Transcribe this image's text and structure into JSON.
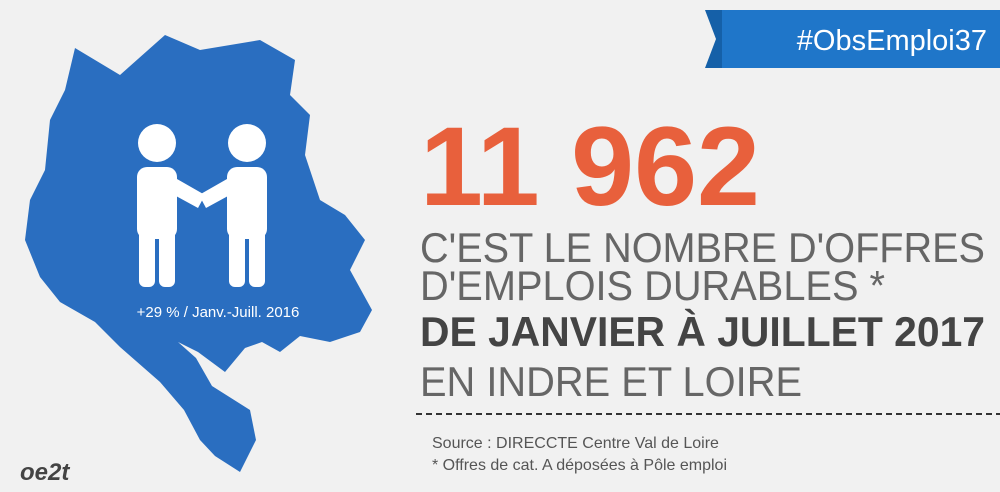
{
  "header": {
    "hashtag": "#ObsEmploi37"
  },
  "map": {
    "label": "+29 % / Janv.-Juill. 2016"
  },
  "headline": {
    "number": "11 962",
    "lines": [
      "C'EST LE NOMBRE D'OFFRES",
      "D'EMPLOIS DURABLES *",
      "DE JANVIER À JUILLET 2017",
      "EN INDRE ET LOIRE"
    ]
  },
  "footer": {
    "source": "Source : DIRECCTE Centre Val de Loire",
    "note": "* Offres de cat. A déposées à Pôle emploi"
  },
  "logo": "oe2t"
}
